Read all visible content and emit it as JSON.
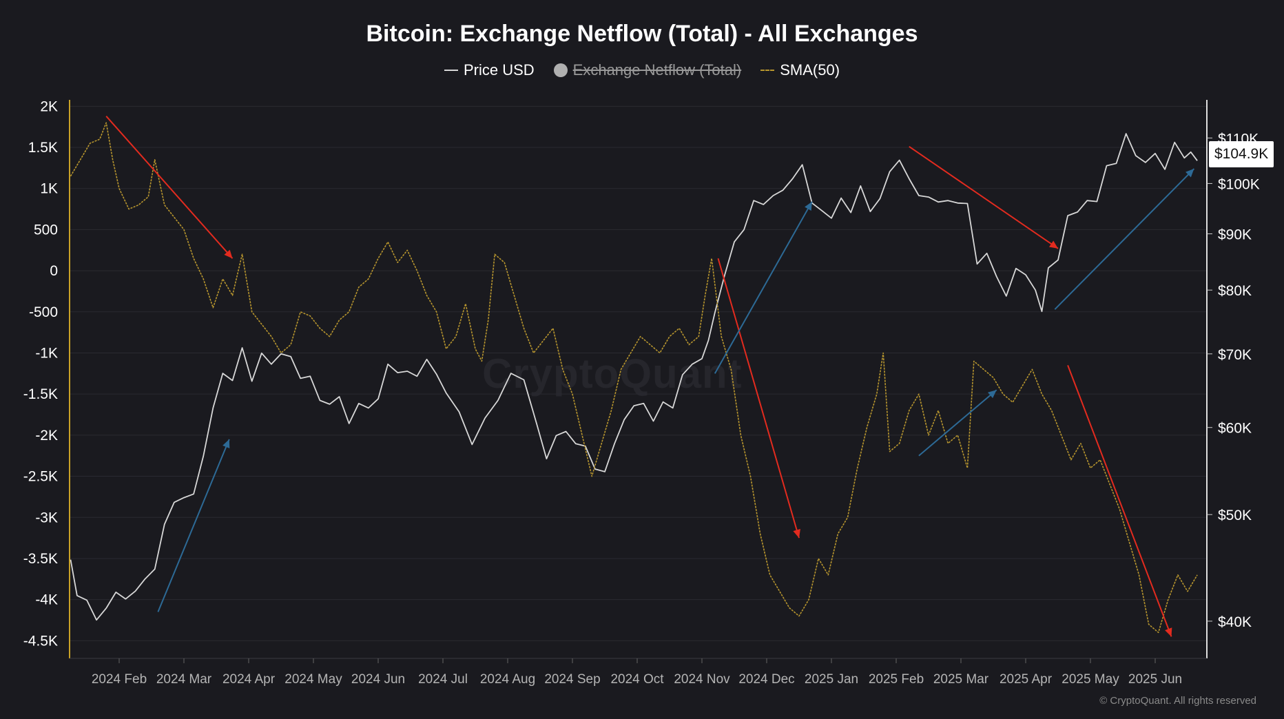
{
  "chart_data": {
    "type": "line",
    "title": "Bitcoin: Exchange Netflow (Total) - All Exchanges",
    "legend": [
      {
        "name": "Price USD",
        "style": "line",
        "color": "#d8d8d8",
        "visible": true
      },
      {
        "name": "Exchange Netflow (Total)",
        "style": "dot",
        "color": "#b0b0b0",
        "visible": false
      },
      {
        "name": "SMA(50)",
        "style": "dashed",
        "color": "#b8962e",
        "visible": true
      }
    ],
    "legend_position": "top-center",
    "grid": true,
    "x_ticks": [
      "2024 Feb",
      "2024 Mar",
      "2024 Apr",
      "2024 May",
      "2024 Jun",
      "2024 Jul",
      "2024 Aug",
      "2024 Sep",
      "2024 Oct",
      "2024 Nov",
      "2024 Dec",
      "2025 Jan",
      "2025 Feb",
      "2025 Mar",
      "2025 Apr",
      "2025 May",
      "2025 Jun"
    ],
    "xlim": [
      -0.8,
      17.5
    ],
    "y_left": {
      "ticks": [
        {
          "v": 2000,
          "label": "2K"
        },
        {
          "v": 1500,
          "label": "1.5K"
        },
        {
          "v": 1000,
          "label": "1K"
        },
        {
          "v": 500,
          "label": "500"
        },
        {
          "v": 0,
          "label": "0"
        },
        {
          "v": -500,
          "label": "-500"
        },
        {
          "v": -1000,
          "label": "-1K"
        },
        {
          "v": -1500,
          "label": "-1.5K"
        },
        {
          "v": -2000,
          "label": "-2K"
        },
        {
          "v": -2500,
          "label": "-2.5K"
        },
        {
          "v": -3000,
          "label": "-3K"
        },
        {
          "v": -3500,
          "label": "-3.5K"
        },
        {
          "v": -4000,
          "label": "-4K"
        },
        {
          "v": -4500,
          "label": "-4.5K"
        }
      ],
      "ylim": [
        -4715,
        2120
      ]
    },
    "y_right": {
      "scale": "log",
      "ticks": [
        {
          "v": 110000,
          "label": "$110K"
        },
        {
          "v": 100000,
          "label": "$100K"
        },
        {
          "v": 90000,
          "label": "$90K"
        },
        {
          "v": 80000,
          "label": "$80K"
        },
        {
          "v": 70000,
          "label": "$70K"
        },
        {
          "v": 60000,
          "label": "$60K"
        },
        {
          "v": 50000,
          "label": "$50K"
        },
        {
          "v": 40000,
          "label": "$40K"
        }
      ],
      "ylim": [
        37000,
        120000
      ]
    },
    "series": [
      {
        "name": "Price USD",
        "axis": "right",
        "color": "#d8d8d8",
        "points": [
          [
            -0.75,
            45500
          ],
          [
            -0.65,
            42200
          ],
          [
            -0.5,
            41800
          ],
          [
            -0.35,
            40100
          ],
          [
            -0.2,
            41100
          ],
          [
            -0.05,
            42500
          ],
          [
            0.1,
            41900
          ],
          [
            0.25,
            42600
          ],
          [
            0.4,
            43700
          ],
          [
            0.55,
            44600
          ],
          [
            0.7,
            49000
          ],
          [
            0.85,
            51300
          ],
          [
            1.0,
            51800
          ],
          [
            1.15,
            52200
          ],
          [
            1.3,
            56500
          ],
          [
            1.45,
            62500
          ],
          [
            1.6,
            67200
          ],
          [
            1.75,
            66200
          ],
          [
            1.9,
            70900
          ],
          [
            2.05,
            66100
          ],
          [
            2.2,
            70100
          ],
          [
            2.35,
            68500
          ],
          [
            2.5,
            70000
          ],
          [
            2.65,
            69600
          ],
          [
            2.8,
            66500
          ],
          [
            2.95,
            66800
          ],
          [
            3.1,
            63500
          ],
          [
            3.25,
            63000
          ],
          [
            3.4,
            64000
          ],
          [
            3.55,
            60500
          ],
          [
            3.7,
            63100
          ],
          [
            3.85,
            62500
          ],
          [
            4.0,
            63700
          ],
          [
            4.15,
            68500
          ],
          [
            4.3,
            67300
          ],
          [
            4.45,
            67500
          ],
          [
            4.6,
            66800
          ],
          [
            4.75,
            69200
          ],
          [
            4.9,
            67100
          ],
          [
            5.05,
            64500
          ],
          [
            5.25,
            62000
          ],
          [
            5.45,
            57900
          ],
          [
            5.65,
            61200
          ],
          [
            5.85,
            63500
          ],
          [
            6.05,
            67200
          ],
          [
            6.25,
            66300
          ],
          [
            6.45,
            60400
          ],
          [
            6.6,
            56200
          ],
          [
            6.75,
            59000
          ],
          [
            6.9,
            59500
          ],
          [
            7.05,
            58000
          ],
          [
            7.2,
            57700
          ],
          [
            7.35,
            55000
          ],
          [
            7.5,
            54700
          ],
          [
            7.65,
            58000
          ],
          [
            7.8,
            61000
          ],
          [
            7.95,
            62800
          ],
          [
            8.1,
            63100
          ],
          [
            8.25,
            60800
          ],
          [
            8.4,
            63300
          ],
          [
            8.55,
            62500
          ],
          [
            8.7,
            67000
          ],
          [
            8.85,
            68500
          ],
          [
            9.0,
            69300
          ],
          [
            9.1,
            72000
          ],
          [
            9.2,
            76300
          ],
          [
            9.35,
            82500
          ],
          [
            9.5,
            88500
          ],
          [
            9.65,
            90800
          ],
          [
            9.8,
            96500
          ],
          [
            9.95,
            95700
          ],
          [
            10.1,
            97500
          ],
          [
            10.25,
            98600
          ],
          [
            10.4,
            101000
          ],
          [
            10.55,
            104000
          ],
          [
            10.7,
            96000
          ],
          [
            10.85,
            94500
          ],
          [
            11.0,
            93000
          ],
          [
            11.15,
            97000
          ],
          [
            11.3,
            94100
          ],
          [
            11.45,
            99500
          ],
          [
            11.6,
            94300
          ],
          [
            11.75,
            96900
          ],
          [
            11.9,
            102500
          ],
          [
            12.05,
            105000
          ],
          [
            12.2,
            101000
          ],
          [
            12.35,
            97500
          ],
          [
            12.5,
            97200
          ],
          [
            12.65,
            96200
          ],
          [
            12.8,
            96500
          ],
          [
            12.95,
            96000
          ],
          [
            13.1,
            95900
          ],
          [
            13.25,
            84500
          ],
          [
            13.4,
            86400
          ],
          [
            13.55,
            82300
          ],
          [
            13.7,
            79000
          ],
          [
            13.85,
            83700
          ],
          [
            14.0,
            82600
          ],
          [
            14.15,
            80000
          ],
          [
            14.25,
            76500
          ],
          [
            14.35,
            83800
          ],
          [
            14.5,
            85200
          ],
          [
            14.65,
            93500
          ],
          [
            14.8,
            94200
          ],
          [
            14.95,
            96500
          ],
          [
            15.1,
            96300
          ],
          [
            15.25,
            103800
          ],
          [
            15.4,
            104300
          ],
          [
            15.55,
            111000
          ],
          [
            15.7,
            106000
          ],
          [
            15.85,
            104500
          ],
          [
            16.0,
            106500
          ],
          [
            16.15,
            103000
          ],
          [
            16.3,
            109000
          ],
          [
            16.45,
            105500
          ],
          [
            16.55,
            106800
          ],
          [
            16.65,
            104900
          ]
        ]
      },
      {
        "name": "SMA(50)",
        "axis": "left",
        "color": "#b8962e",
        "points": [
          [
            -0.75,
            1150
          ],
          [
            -0.6,
            1350
          ],
          [
            -0.45,
            1550
          ],
          [
            -0.3,
            1600
          ],
          [
            -0.2,
            1800
          ],
          [
            -0.1,
            1350
          ],
          [
            0.0,
            1000
          ],
          [
            0.15,
            750
          ],
          [
            0.3,
            800
          ],
          [
            0.45,
            900
          ],
          [
            0.55,
            1350
          ],
          [
            0.7,
            800
          ],
          [
            0.85,
            650
          ],
          [
            1.0,
            500
          ],
          [
            1.15,
            150
          ],
          [
            1.3,
            -100
          ],
          [
            1.45,
            -450
          ],
          [
            1.6,
            -100
          ],
          [
            1.75,
            -300
          ],
          [
            1.9,
            200
          ],
          [
            2.05,
            -500
          ],
          [
            2.2,
            -650
          ],
          [
            2.35,
            -800
          ],
          [
            2.5,
            -1000
          ],
          [
            2.65,
            -900
          ],
          [
            2.8,
            -500
          ],
          [
            2.95,
            -550
          ],
          [
            3.1,
            -700
          ],
          [
            3.25,
            -800
          ],
          [
            3.4,
            -600
          ],
          [
            3.55,
            -500
          ],
          [
            3.7,
            -200
          ],
          [
            3.85,
            -100
          ],
          [
            4.0,
            150
          ],
          [
            4.15,
            350
          ],
          [
            4.3,
            100
          ],
          [
            4.45,
            250
          ],
          [
            4.6,
            0
          ],
          [
            4.75,
            -300
          ],
          [
            4.9,
            -500
          ],
          [
            5.05,
            -950
          ],
          [
            5.2,
            -800
          ],
          [
            5.35,
            -400
          ],
          [
            5.5,
            -950
          ],
          [
            5.6,
            -1100
          ],
          [
            5.7,
            -600
          ],
          [
            5.8,
            200
          ],
          [
            5.95,
            100
          ],
          [
            6.1,
            -300
          ],
          [
            6.25,
            -700
          ],
          [
            6.4,
            -1000
          ],
          [
            6.55,
            -850
          ],
          [
            6.7,
            -700
          ],
          [
            6.85,
            -1200
          ],
          [
            7.0,
            -1500
          ],
          [
            7.15,
            -2000
          ],
          [
            7.3,
            -2500
          ],
          [
            7.45,
            -2100
          ],
          [
            7.6,
            -1700
          ],
          [
            7.75,
            -1200
          ],
          [
            7.9,
            -1000
          ],
          [
            8.05,
            -800
          ],
          [
            8.2,
            -900
          ],
          [
            8.35,
            -1000
          ],
          [
            8.5,
            -800
          ],
          [
            8.65,
            -700
          ],
          [
            8.8,
            -900
          ],
          [
            8.95,
            -800
          ],
          [
            9.05,
            -300
          ],
          [
            9.15,
            150
          ],
          [
            9.3,
            -800
          ],
          [
            9.45,
            -1200
          ],
          [
            9.6,
            -2000
          ],
          [
            9.75,
            -2500
          ],
          [
            9.9,
            -3200
          ],
          [
            10.05,
            -3700
          ],
          [
            10.2,
            -3900
          ],
          [
            10.35,
            -4100
          ],
          [
            10.5,
            -4200
          ],
          [
            10.65,
            -4000
          ],
          [
            10.8,
            -3500
          ],
          [
            10.95,
            -3700
          ],
          [
            11.1,
            -3200
          ],
          [
            11.25,
            -3000
          ],
          [
            11.4,
            -2400
          ],
          [
            11.55,
            -1900
          ],
          [
            11.7,
            -1500
          ],
          [
            11.8,
            -1000
          ],
          [
            11.9,
            -2200
          ],
          [
            12.05,
            -2100
          ],
          [
            12.2,
            -1700
          ],
          [
            12.35,
            -1500
          ],
          [
            12.5,
            -2000
          ],
          [
            12.65,
            -1700
          ],
          [
            12.8,
            -2100
          ],
          [
            12.95,
            -2000
          ],
          [
            13.1,
            -2400
          ],
          [
            13.2,
            -1100
          ],
          [
            13.35,
            -1200
          ],
          [
            13.5,
            -1300
          ],
          [
            13.65,
            -1500
          ],
          [
            13.8,
            -1600
          ],
          [
            13.95,
            -1400
          ],
          [
            14.1,
            -1200
          ],
          [
            14.25,
            -1500
          ],
          [
            14.4,
            -1700
          ],
          [
            14.55,
            -2000
          ],
          [
            14.7,
            -2300
          ],
          [
            14.85,
            -2100
          ],
          [
            15.0,
            -2400
          ],
          [
            15.15,
            -2300
          ],
          [
            15.3,
            -2600
          ],
          [
            15.45,
            -2900
          ],
          [
            15.6,
            -3300
          ],
          [
            15.75,
            -3700
          ],
          [
            15.9,
            -4300
          ],
          [
            16.05,
            -4400
          ],
          [
            16.2,
            -4000
          ],
          [
            16.35,
            -3700
          ],
          [
            16.5,
            -3900
          ],
          [
            16.65,
            -3700
          ]
        ]
      }
    ],
    "annotation_arrows": [
      {
        "color": "#e32b1f",
        "from": [
          -0.2,
          1880
        ],
        "to": [
          1.75,
          150
        ]
      },
      {
        "color": "#e32b1f",
        "from": [
          9.25,
          150
        ],
        "to": [
          10.5,
          -3250
        ]
      },
      {
        "color": "#e32b1f",
        "from": [
          12.2,
          1510
        ],
        "to": [
          14.5,
          270
        ]
      },
      {
        "color": "#e32b1f",
        "from": [
          14.65,
          -1150
        ],
        "to": [
          16.25,
          -4450
        ]
      },
      {
        "color": "#2d6a96",
        "from": [
          0.6,
          -4150
        ],
        "to": [
          1.7,
          -2050
        ]
      },
      {
        "color": "#2d6a96",
        "from": [
          9.2,
          -1250
        ],
        "to": [
          10.7,
          840
        ]
      },
      {
        "color": "#2d6a96",
        "from": [
          12.35,
          -2250
        ],
        "to": [
          13.55,
          -1450
        ]
      },
      {
        "color": "#2d6a96",
        "from": [
          14.45,
          -470
        ],
        "to": [
          16.6,
          1240
        ]
      }
    ],
    "current_price_label": "$104.9K",
    "watermark": "CryptoQuant",
    "copyright": "© CryptoQuant. All rights reserved"
  }
}
